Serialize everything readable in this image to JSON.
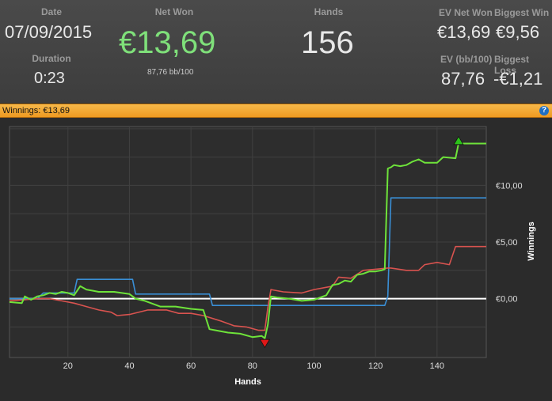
{
  "stats": {
    "date_label": "Date",
    "date_value": "07/09/2015",
    "duration_label": "Duration",
    "duration_value": "0:23",
    "net_won_label": "Net Won",
    "net_won_value": "€13,69",
    "net_won_sub": "87,76 bb/100",
    "hands_label": "Hands",
    "hands_value": "156",
    "ev_net_won_label": "EV Net Won",
    "ev_net_won_value": "€13,69",
    "biggest_win_label": "Biggest Win",
    "biggest_win_value": "€9,56",
    "ev_bb_label": "EV (bb/100)",
    "ev_bb_value": "87,76",
    "biggest_loss_label": "Biggest Loss",
    "biggest_loss_value": "-€1,21"
  },
  "winnings_bar": {
    "label": "Winnings: €13,69",
    "help_icon": "question-icon"
  },
  "colors": {
    "net_won": "#7fe07a",
    "winnings_line": "#6ee33a",
    "ev_line": "#d9534f",
    "showdown_line": "#3a8fd6",
    "zero_line": "#ffffff",
    "header_bar": "#f0a030"
  },
  "chart_data": {
    "type": "line",
    "xlabel": "Hands",
    "ylabel": "Winnings",
    "xlim": [
      1,
      156
    ],
    "ylim": [
      -5.2,
      15.2
    ],
    "x_ticks": [
      "20",
      "40",
      "60",
      "80",
      "100",
      "120",
      "140"
    ],
    "x_tick_values": [
      20,
      40,
      60,
      80,
      100,
      120,
      140
    ],
    "y_ticks": [
      "€0,00",
      "€5,00",
      "€10,00"
    ],
    "y_tick_values": [
      0,
      5,
      10
    ],
    "grid": true,
    "series": [
      {
        "key": "winnings",
        "color": "#6ee33a",
        "x": [
          1,
          5,
          6,
          8,
          10,
          12,
          14,
          16,
          18,
          20,
          22,
          24,
          26,
          28,
          30,
          35,
          40,
          42,
          45,
          50,
          55,
          60,
          64,
          66,
          68,
          72,
          76,
          80,
          83,
          84,
          85,
          86,
          88,
          92,
          96,
          100,
          104,
          106,
          108,
          110,
          112,
          114,
          116,
          118,
          120,
          122,
          123,
          124,
          125,
          126,
          128,
          130,
          132,
          134,
          136,
          140,
          142,
          146,
          147,
          150,
          156
        ],
        "y": [
          -0.3,
          -0.4,
          0.2,
          -0.1,
          0.2,
          0.3,
          0.5,
          0.4,
          0.6,
          0.5,
          0.3,
          1.1,
          0.8,
          0.7,
          0.6,
          0.6,
          0.4,
          0.0,
          -0.2,
          -0.7,
          -0.7,
          -0.9,
          -1.0,
          -2.7,
          -2.8,
          -3.0,
          -3.1,
          -3.4,
          -3.3,
          -3.5,
          -2.3,
          0.2,
          0.1,
          0.0,
          -0.2,
          -0.1,
          0.3,
          1.2,
          1.3,
          1.6,
          1.5,
          2.1,
          2.2,
          2.4,
          2.4,
          2.5,
          2.6,
          11.5,
          11.6,
          11.8,
          11.7,
          11.8,
          12.1,
          12.3,
          12.0,
          12.0,
          12.5,
          12.4,
          13.7,
          13.7,
          13.7
        ]
      },
      {
        "key": "ev",
        "color": "#d9534f",
        "x": [
          1,
          6,
          10,
          14,
          18,
          22,
          26,
          30,
          34,
          36,
          40,
          46,
          52,
          56,
          60,
          64,
          70,
          74,
          78,
          82,
          84,
          85,
          86,
          90,
          96,
          100,
          106,
          108,
          112,
          116,
          120,
          124,
          125,
          130,
          134,
          136,
          140,
          144,
          146,
          156
        ],
        "y": [
          -0.2,
          -0.1,
          0.0,
          0.0,
          -0.2,
          -0.4,
          -0.7,
          -1.0,
          -1.2,
          -1.5,
          -1.4,
          -1.0,
          -1.0,
          -1.3,
          -1.3,
          -1.5,
          -2.0,
          -2.4,
          -2.5,
          -2.8,
          -2.8,
          -0.8,
          0.8,
          0.6,
          0.5,
          0.8,
          1.1,
          1.9,
          1.8,
          2.5,
          2.6,
          2.7,
          2.7,
          2.5,
          2.5,
          3.0,
          3.2,
          3.0,
          4.6,
          4.6
        ]
      },
      {
        "key": "showdown",
        "color": "#3a8fd6",
        "x": [
          1,
          10,
          12,
          22,
          23,
          41,
          42,
          66,
          67,
          123,
          124,
          125,
          156
        ],
        "y": [
          0.0,
          0.0,
          0.5,
          0.5,
          1.7,
          1.7,
          0.4,
          0.4,
          -0.6,
          -0.6,
          0.2,
          8.9,
          8.9
        ]
      }
    ],
    "markers": [
      {
        "shape": "triangle-up",
        "color": "#2cc21a",
        "x": 147,
        "y": 13.9
      },
      {
        "shape": "triangle-down",
        "color": "#e01818",
        "x": 84,
        "y": -3.9
      }
    ]
  }
}
